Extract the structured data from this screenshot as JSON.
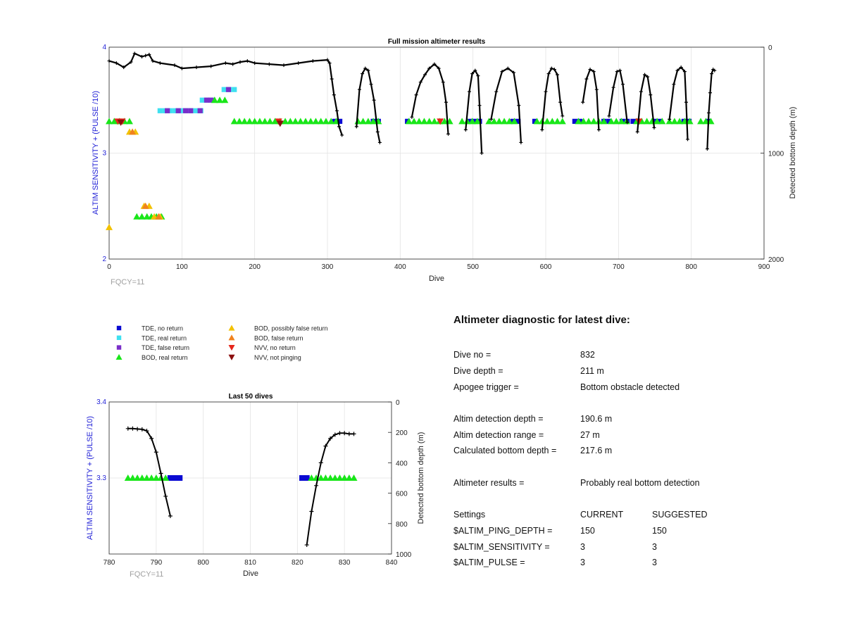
{
  "chart_data": [
    {
      "type": "scatter",
      "title": "Full mission altimeter results",
      "xlabel": "Dive",
      "ylabel": "ALTIM SENSITIVITY + (PULSE /10)",
      "y2label": "Detected bottom depth (m)",
      "xlim": [
        0,
        900
      ],
      "ylim": [
        2,
        4
      ],
      "y2lim": [
        2000,
        0
      ],
      "x_ticks": [
        "0",
        "100",
        "200",
        "300",
        "400",
        "500",
        "600",
        "700",
        "800",
        "900"
      ],
      "y_ticks": [
        "2",
        "3",
        "4"
      ],
      "y2_ticks": [
        "0",
        "1000",
        "2000"
      ],
      "grid": true,
      "annotation": "FQCY=11",
      "series": [
        {
          "name": "TDE, no return",
          "color": "#0a0ad2",
          "marker": "square",
          "segments": [
            [
              310,
              320,
              3.3
            ],
            [
              363,
              372,
              3.3
            ],
            [
              410,
              416,
              3.3
            ],
            [
              495,
              512,
              3.3
            ],
            [
              555,
              563,
              3.3
            ],
            [
              585,
              590,
              3.3
            ],
            [
              640,
              648,
              3.3
            ],
            [
              680,
              690,
              3.3
            ],
            [
              705,
              712,
              3.3
            ],
            [
              720,
              727,
              3.3
            ],
            [
              750,
              760,
              3.3
            ],
            [
              790,
              797,
              3.3
            ],
            [
              823,
              828,
              3.3
            ]
          ]
        },
        {
          "name": "TDE, real return",
          "color": "#3ee0f0",
          "marker": "square",
          "segments": [
            [
              70,
              132,
              3.4
            ],
            [
              128,
              148,
              3.5
            ],
            [
              158,
              172,
              3.6
            ]
          ]
        },
        {
          "name": "TDE, false return",
          "color": "#7a2ec9",
          "marker": "square",
          "segments": [
            [
              80,
              80,
              3.4
            ],
            [
              95,
              95,
              3.4
            ],
            [
              105,
              105,
              3.4
            ],
            [
              112,
              112,
              3.4
            ],
            [
              125,
              125,
              3.4
            ],
            [
              134,
              134,
              3.5
            ],
            [
              140,
              140,
              3.5
            ],
            [
              164,
              164,
              3.6
            ]
          ]
        },
        {
          "name": "BOD, real return",
          "color": "#19e619",
          "marker": "triangle-up",
          "segments": [
            [
              0,
              34,
              3.3
            ],
            [
              145,
              160,
              3.5
            ],
            [
              172,
              312,
              3.3
            ],
            [
              342,
              372,
              3.3
            ],
            [
              412,
              470,
              3.3
            ],
            [
              485,
              510,
              3.3
            ],
            [
              522,
              562,
              3.3
            ],
            [
              588,
              628,
              3.3
            ],
            [
              645,
              683,
              3.3
            ],
            [
              690,
              712,
              3.3
            ],
            [
              725,
              760,
              3.3
            ],
            [
              770,
              800,
              3.3
            ],
            [
              813,
              832,
              3.3
            ],
            [
              38,
              55,
              2.4
            ],
            [
              58,
              72,
              2.4
            ]
          ]
        },
        {
          "name": "BOD, possibly false return",
          "color": "#f2c100",
          "marker": "triangle-up",
          "points": [
            [
              0,
              2.3
            ],
            [
              28,
              3.2
            ],
            [
              36,
              3.2
            ],
            [
              48,
              2.5
            ],
            [
              55,
              2.5
            ],
            [
              62,
              2.4
            ],
            [
              70,
              2.4
            ]
          ]
        },
        {
          "name": "BOD, false return",
          "color": "#f0821e",
          "marker": "triangle-up",
          "points": [
            [
              50,
              2.5
            ],
            [
              32,
              3.2
            ],
            [
              68,
              2.4
            ]
          ]
        },
        {
          "name": "NVV, no return",
          "color": "#e6261c",
          "marker": "triangle-down",
          "points": [
            [
              12,
              3.3
            ],
            [
              18,
              3.3
            ],
            [
              233,
              3.3
            ],
            [
              455,
              3.3
            ],
            [
              728,
              3.3
            ]
          ]
        },
        {
          "name": "NVV, not pinging",
          "color": "#8b0f0f",
          "marker": "triangle-down",
          "points": [
            [
              16,
              3.29
            ],
            [
              235,
              3.28
            ]
          ]
        }
      ],
      "depth_series": {
        "name": "Detected bottom depth",
        "color": "#000000",
        "axis": "right",
        "segments": [
          [
            [
              0,
              130
            ],
            [
              10,
              150
            ],
            [
              20,
              190
            ],
            [
              30,
              140
            ],
            [
              35,
              60
            ],
            [
              45,
              90
            ],
            [
              50,
              80
            ],
            [
              55,
              70
            ],
            [
              60,
              130
            ],
            [
              70,
              150
            ],
            [
              90,
              170
            ],
            [
              100,
              200
            ],
            [
              120,
              190
            ],
            [
              140,
              180
            ],
            [
              160,
              150
            ],
            [
              170,
              160
            ],
            [
              180,
              140
            ],
            [
              190,
              130
            ],
            [
              200,
              150
            ],
            [
              220,
              160
            ],
            [
              240,
              170
            ],
            [
              260,
              150
            ],
            [
              280,
              130
            ],
            [
              300,
              120
            ],
            [
              303,
              150
            ],
            [
              306,
              300
            ],
            [
              309,
              450
            ],
            [
              313,
              600
            ],
            [
              316,
              750
            ],
            [
              320,
              830
            ]
          ],
          [
            [
              340,
              750
            ],
            [
              344,
              400
            ],
            [
              348,
              250
            ],
            [
              352,
              200
            ],
            [
              356,
              220
            ],
            [
              360,
              350
            ],
            [
              364,
              500
            ],
            [
              369,
              800
            ],
            [
              372,
              900
            ]
          ],
          [
            [
              416,
              660
            ],
            [
              422,
              450
            ],
            [
              428,
              330
            ],
            [
              434,
              260
            ],
            [
              440,
              200
            ],
            [
              447,
              160
            ],
            [
              453,
              200
            ],
            [
              459,
              330
            ],
            [
              463,
              520
            ],
            [
              466,
              820
            ]
          ],
          [
            [
              490,
              780
            ],
            [
              495,
              420
            ],
            [
              499,
              250
            ],
            [
              503,
              220
            ],
            [
              507,
              270
            ],
            [
              509,
              550
            ],
            [
              512,
              1000
            ]
          ],
          [
            [
              525,
              680
            ],
            [
              532,
              420
            ],
            [
              540,
              230
            ],
            [
              548,
              200
            ],
            [
              556,
              240
            ],
            [
              563,
              550
            ],
            [
              566,
              900
            ]
          ],
          [
            [
              595,
              780
            ],
            [
              600,
              420
            ],
            [
              604,
              250
            ],
            [
              608,
              200
            ],
            [
              612,
              210
            ],
            [
              616,
              260
            ],
            [
              620,
              520
            ],
            [
              623,
              650
            ]
          ],
          [
            [
              651,
              520
            ],
            [
              656,
              300
            ],
            [
              661,
              210
            ],
            [
              666,
              230
            ],
            [
              670,
              400
            ],
            [
              673,
              780
            ]
          ],
          [
            [
              687,
              650
            ],
            [
              693,
              380
            ],
            [
              698,
              230
            ],
            [
              702,
              220
            ],
            [
              706,
              350
            ],
            [
              712,
              710
            ]
          ],
          [
            [
              726,
              800
            ],
            [
              731,
              420
            ],
            [
              736,
              260
            ],
            [
              740,
              280
            ],
            [
              744,
              450
            ],
            [
              749,
              760
            ]
          ],
          [
            [
              770,
              680
            ],
            [
              776,
              350
            ],
            [
              781,
              220
            ],
            [
              786,
              190
            ],
            [
              791,
              230
            ],
            [
              793,
              520
            ],
            [
              795,
              870
            ]
          ],
          [
            [
              822,
              960
            ],
            [
              824,
              620
            ],
            [
              826,
              430
            ],
            [
              828,
              250
            ],
            [
              830,
              210
            ],
            [
              832,
              220
            ]
          ]
        ]
      }
    },
    {
      "type": "scatter",
      "title": "Last 50 dives",
      "xlabel": "Dive",
      "ylabel": "ALTIM SENSITIVITY + (PULSE /10)",
      "y2label": "Detected bottom depth (m)",
      "xlim": [
        780,
        840
      ],
      "ylim": [
        3.2,
        3.4
      ],
      "y2lim": [
        1000,
        0
      ],
      "x_ticks": [
        "780",
        "790",
        "800",
        "810",
        "820",
        "830",
        "840"
      ],
      "y_ticks": [
        "3.3",
        "3.4"
      ],
      "y2_ticks": [
        "0",
        "200",
        "400",
        "600",
        "800",
        "1000"
      ],
      "grid": true,
      "annotation": "FQCY=11",
      "tde_no_return": [
        [
          793,
          3.3
        ],
        [
          794,
          3.3
        ],
        [
          795,
          3.3
        ],
        [
          821,
          3.3
        ],
        [
          822,
          3.3
        ]
      ],
      "bod_real_return": [
        [
          784,
          3.3
        ],
        [
          785,
          3.3
        ],
        [
          786,
          3.3
        ],
        [
          787,
          3.3
        ],
        [
          788,
          3.3
        ],
        [
          789,
          3.3
        ],
        [
          790,
          3.3
        ],
        [
          791,
          3.3
        ],
        [
          792,
          3.3
        ],
        [
          823,
          3.3
        ],
        [
          824,
          3.3
        ],
        [
          825,
          3.3
        ],
        [
          826,
          3.3
        ],
        [
          827,
          3.3
        ],
        [
          828,
          3.3
        ],
        [
          829,
          3.3
        ],
        [
          830,
          3.3
        ],
        [
          831,
          3.3
        ],
        [
          832,
          3.3
        ]
      ],
      "depth_segments": [
        [
          [
            784,
            175
          ],
          [
            785,
            175
          ],
          [
            786,
            178
          ],
          [
            787,
            180
          ],
          [
            788,
            190
          ],
          [
            789,
            240
          ],
          [
            790,
            330
          ],
          [
            791,
            470
          ],
          [
            792,
            620
          ],
          [
            793,
            750
          ]
        ],
        [
          [
            822,
            940
          ],
          [
            823,
            720
          ],
          [
            824,
            550
          ],
          [
            825,
            400
          ],
          [
            826,
            290
          ],
          [
            827,
            240
          ],
          [
            828,
            215
          ],
          [
            829,
            205
          ],
          [
            830,
            205
          ],
          [
            831,
            210
          ],
          [
            832,
            210
          ]
        ]
      ]
    }
  ],
  "legend": {
    "col1": [
      {
        "label": "TDE, no return",
        "color": "#0a0ad2",
        "marker": "square"
      },
      {
        "label": "TDE, real return",
        "color": "#3ee0f0",
        "marker": "square"
      },
      {
        "label": "TDE, false return",
        "color": "#7a2ec9",
        "marker": "square"
      },
      {
        "label": "BOD, real return",
        "color": "#19e619",
        "marker": "triangle-up"
      }
    ],
    "col2": [
      {
        "label": "BOD, possibly false return",
        "color": "#f2c100",
        "marker": "triangle-up"
      },
      {
        "label": "BOD, false return",
        "color": "#f0821e",
        "marker": "triangle-up"
      },
      {
        "label": "NVV, no return",
        "color": "#e6261c",
        "marker": "triangle-down"
      },
      {
        "label": "NVV, not pinging",
        "color": "#8b0f0f",
        "marker": "triangle-down"
      }
    ]
  },
  "diagnostic": {
    "heading": "Altimeter diagnostic for latest dive:",
    "dive_no_label": "Dive no =",
    "dive_no": "832",
    "dive_depth_label": "Dive depth =",
    "dive_depth": "211 m",
    "apogee_label": "Apogee trigger =",
    "apogee": "Bottom obstacle detected",
    "det_depth_label": "Altim detection depth =",
    "det_depth": "190.6 m",
    "det_range_label": "Altim detection range =",
    "det_range": "27 m",
    "calc_depth_label": "Calculated bottom depth =",
    "calc_depth": "217.6 m",
    "results_label": "Altimeter results =",
    "results": "Probably real bottom detection",
    "settings_label": "Settings",
    "current_label": "CURRENT",
    "suggested_label": "SUGGESTED",
    "ping_depth_label": "$ALTIM_PING_DEPTH =",
    "ping_depth_current": "150",
    "ping_depth_suggested": "150",
    "sensitivity_label": "$ALTIM_SENSITIVITY =",
    "sensitivity_current": "3",
    "sensitivity_suggested": "3",
    "pulse_label": "$ALTIM_PULSE =",
    "pulse_current": "3",
    "pulse_suggested": "3"
  }
}
